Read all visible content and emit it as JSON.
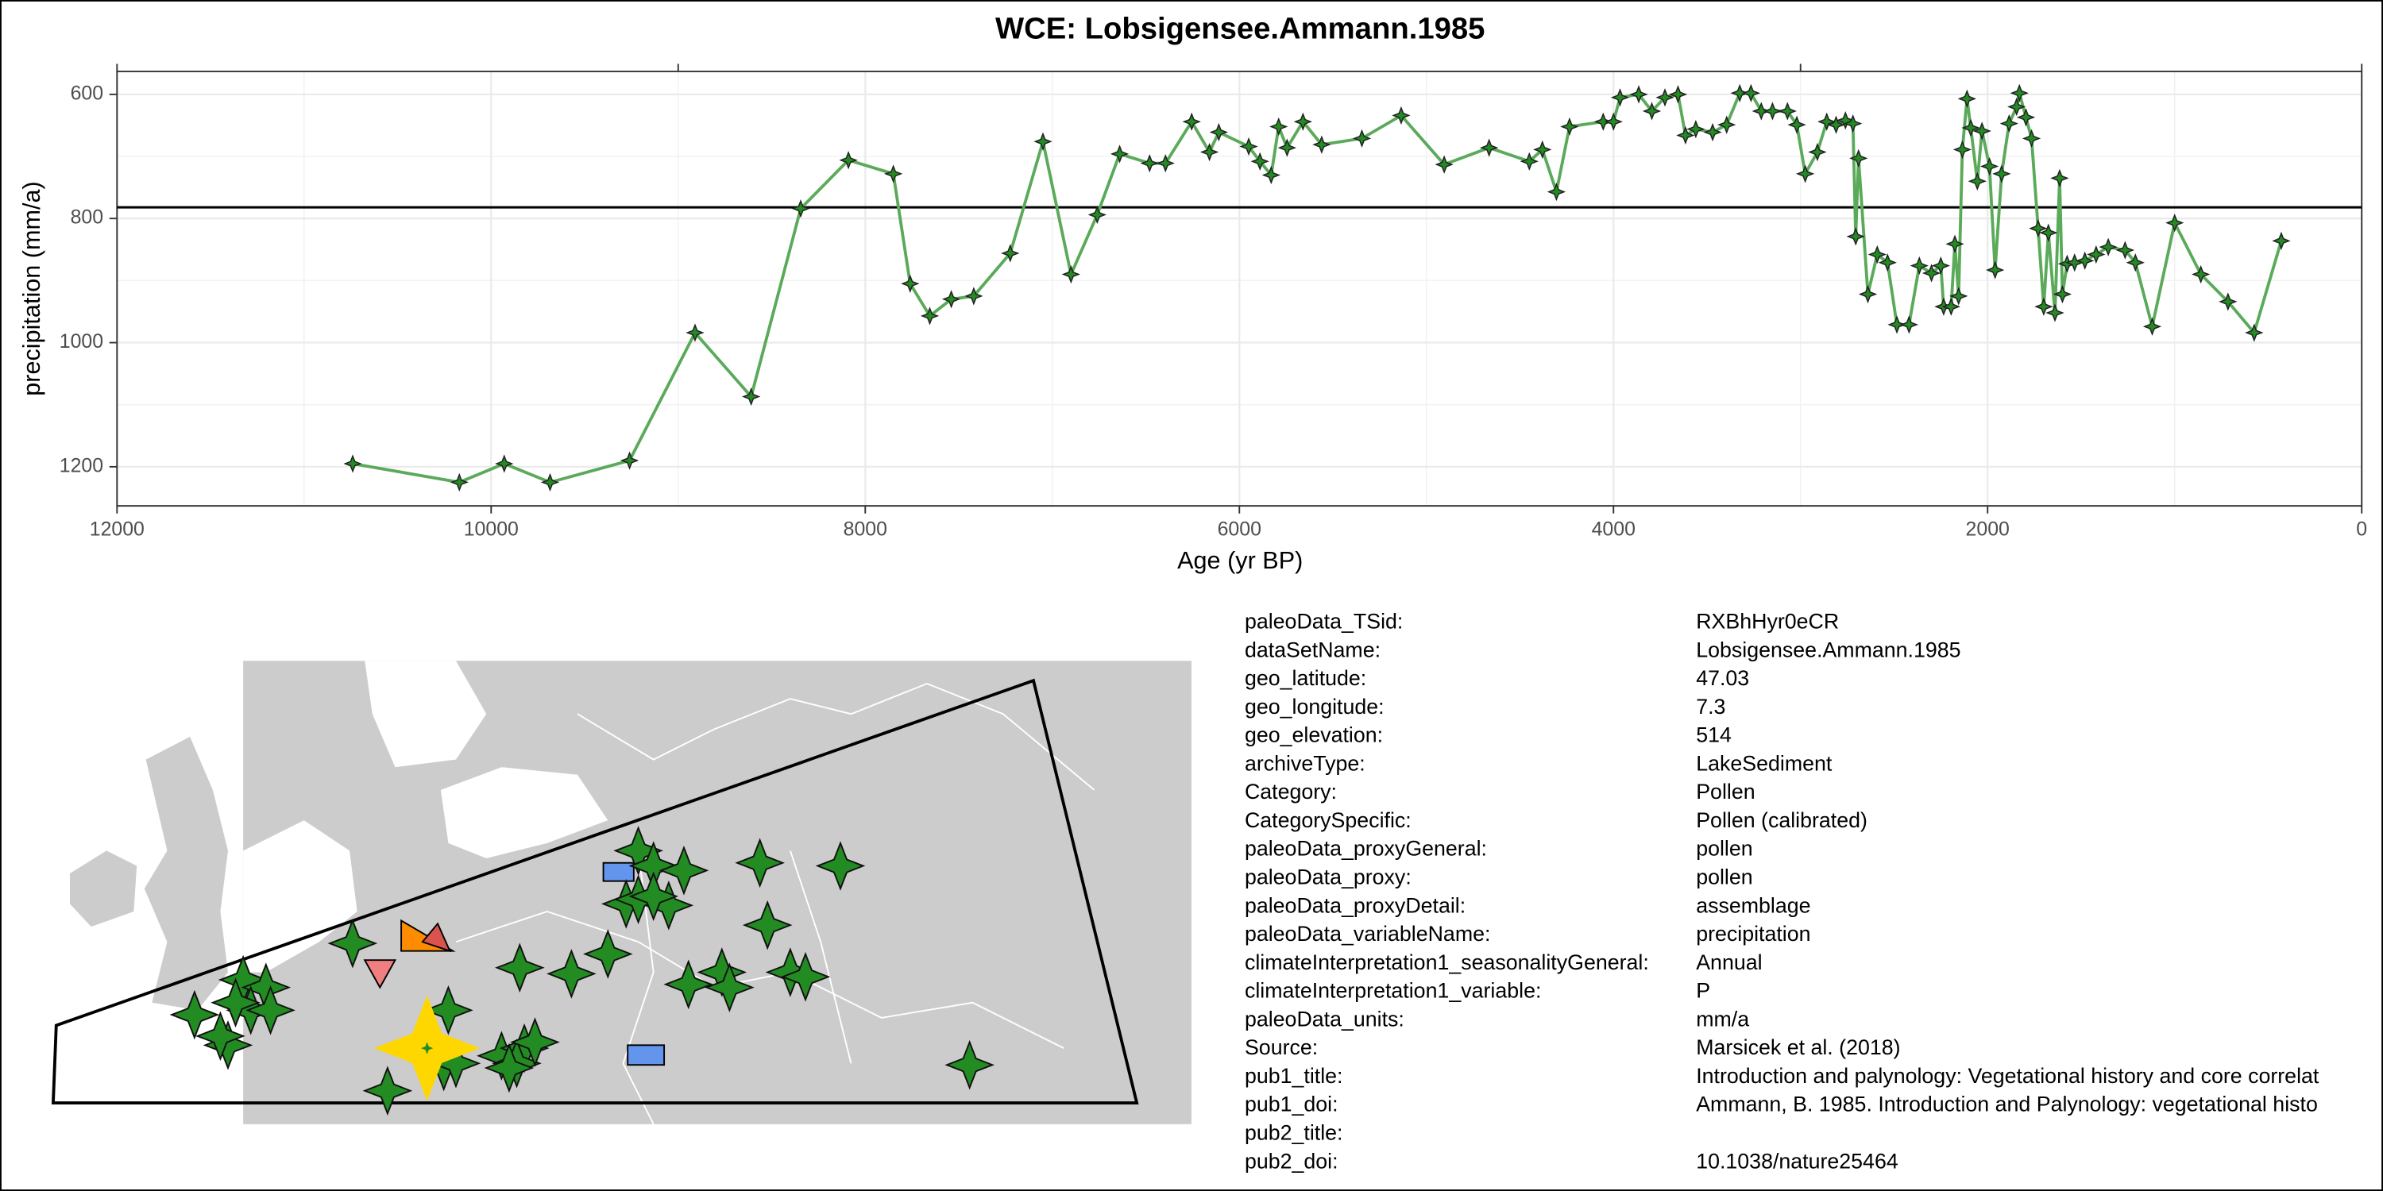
{
  "chart_data": {
    "type": "line",
    "title": "WCE: Lobsigensee.Ammann.1985",
    "x_label": "Age (yr BP)",
    "y_label": "precipitation (mm/a)",
    "color": "#5aaa5a",
    "grid": true,
    "x_reversed": true,
    "xlim": [
      12000,
      0
    ],
    "ylim": [
      1263,
      563
    ],
    "xticks": [
      12000,
      10000,
      8000,
      6000,
      4000,
      2000,
      0
    ],
    "x_minor_ticks": [
      11000,
      9000,
      7000,
      5000,
      3000,
      1000
    ],
    "top_ticks": [
      12000,
      9000,
      3000,
      0
    ],
    "yticks": [
      600,
      800,
      1000,
      1200
    ],
    "y_minor_ticks": [
      700,
      900,
      1100
    ],
    "reference_line": 782,
    "x": [
      10740,
      10170,
      9930,
      9685,
      9260,
      8910,
      8610,
      8345,
      8090,
      7850,
      7760,
      7655,
      7540,
      7420,
      7225,
      7050,
      6900,
      6760,
      6640,
      6480,
      6395,
      6255,
      6160,
      6110,
      5950,
      5890,
      5830,
      5790,
      5745,
      5660,
      5560,
      5345,
      5135,
      4905,
      4665,
      4450,
      4380,
      4305,
      4235,
      4055,
      4000,
      3965,
      3865,
      3795,
      3725,
      3655,
      3615,
      3560,
      3470,
      3395,
      3325,
      3265,
      3210,
      3150,
      3070,
      3020,
      2975,
      2910,
      2860,
      2810,
      2760,
      2720,
      2705,
      2690,
      2640,
      2590,
      2535,
      2485,
      2420,
      2365,
      2300,
      2250,
      2235,
      2195,
      2175,
      2155,
      2135,
      2110,
      2090,
      2055,
      2030,
      1990,
      1960,
      1925,
      1885,
      1845,
      1830,
      1795,
      1765,
      1730,
      1700,
      1675,
      1640,
      1615,
      1600,
      1575,
      1535,
      1480,
      1420,
      1355,
      1265,
      1210,
      1120,
      1000,
      860,
      715,
      575,
      430
    ],
    "values": [
      1195,
      1225,
      1195,
      1225,
      1190,
      984,
      1087,
      784,
      706,
      728,
      905,
      957,
      930,
      925,
      856,
      676,
      890,
      794,
      696,
      711,
      711,
      644,
      693,
      661,
      684,
      708,
      730,
      652,
      686,
      644,
      681,
      671,
      634,
      713,
      686,
      708,
      689,
      757,
      652,
      644,
      644,
      605,
      600,
      627,
      605,
      600,
      666,
      656,
      661,
      649,
      598,
      598,
      627,
      627,
      627,
      649,
      728,
      693,
      644,
      649,
      642,
      647,
      829,
      703,
      922,
      858,
      871,
      971,
      971,
      876,
      888,
      876,
      942,
      942,
      841,
      925,
      689,
      607,
      654,
      740,
      659,
      716,
      883,
      728,
      647,
      620,
      598,
      637,
      671,
      816,
      942,
      823,
      952,
      735,
      922,
      873,
      871,
      868,
      858,
      846,
      851,
      871,
      974,
      807,
      890,
      934,
      984,
      836
    ]
  },
  "metadata": {
    "rows": [
      [
        "paleoData_TSid:",
        "RXBhHyr0eCR"
      ],
      [
        "dataSetName:",
        "Lobsigensee.Ammann.1985"
      ],
      [
        "geo_latitude:",
        "47.03"
      ],
      [
        "geo_longitude:",
        "7.3"
      ],
      [
        "geo_elevation:",
        "514"
      ],
      [
        "archiveType:",
        "LakeSediment"
      ],
      [
        "Category:",
        "Pollen"
      ],
      [
        "CategorySpecific:",
        "Pollen (calibrated)"
      ],
      [
        "paleoData_proxyGeneral:",
        "pollen"
      ],
      [
        "paleoData_proxy:",
        "pollen"
      ],
      [
        "paleoData_proxyDetail:",
        "assemblage"
      ],
      [
        "paleoData_variableName:",
        "precipitation"
      ],
      [
        "climateInterpretation1_seasonalityGeneral:",
        "Annual"
      ],
      [
        "climateInterpretation1_variable:",
        "P"
      ],
      [
        "paleoData_units:",
        "mm/a"
      ],
      [
        "Source:",
        "Marsicek et al. (2018)"
      ],
      [
        "pub1_title:",
        "Introduction and palynology: Vegetational history and core correlat"
      ],
      [
        "pub1_doi:",
        "Ammann, B. 1985. Introduction and Palynology: vegetational histo"
      ],
      [
        "pub2_title:"
      ],
      [
        "pub2_doi:",
        "10.1038/nature25464"
      ]
    ]
  }
}
